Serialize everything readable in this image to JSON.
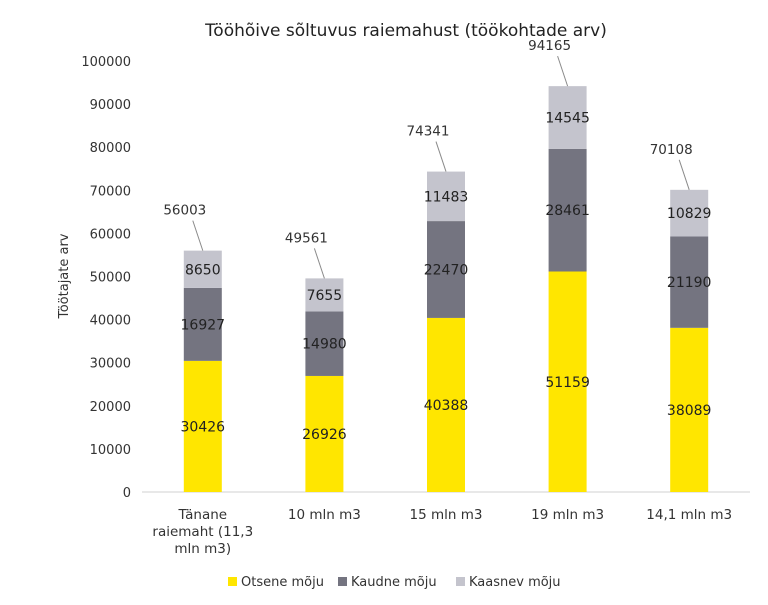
{
  "chart_data": {
    "type": "bar",
    "stacked": true,
    "title": "Tööhõive sõltuvus raiemahust (töökohtade arv)",
    "ylabel": "Töötajate arv",
    "xlabel": "",
    "ylim": [
      0,
      100000
    ],
    "yticks": [
      "0",
      "10000",
      "20000",
      "30000",
      "40000",
      "50000",
      "60000",
      "70000",
      "80000",
      "90000",
      "100000"
    ],
    "ytick_values": [
      0,
      10000,
      20000,
      30000,
      40000,
      50000,
      60000,
      70000,
      80000,
      90000,
      100000
    ],
    "grid": false,
    "legend_position": "bottom",
    "categories": [
      [
        "Tänane",
        "raiemaht (11,3",
        "mln m3)"
      ],
      [
        "10 mln m3"
      ],
      [
        "15 mln m3"
      ],
      [
        "19 mln m3"
      ],
      [
        "14,1 mln m3"
      ]
    ],
    "series": [
      {
        "name": "Otsene mõju",
        "color": "#FFE600",
        "values": [
          30426,
          26926,
          40388,
          51159,
          38089
        ]
      },
      {
        "name": "Kaudne mõju",
        "color": "#747480",
        "values": [
          16927,
          14980,
          22470,
          28461,
          21190
        ]
      },
      {
        "name": "Kaasnev mõju",
        "color": "#C4C4CD",
        "values": [
          8650,
          7655,
          11483,
          14545,
          10829
        ]
      }
    ],
    "totals": [
      56003,
      49561,
      74341,
      94165,
      70108
    ]
  }
}
